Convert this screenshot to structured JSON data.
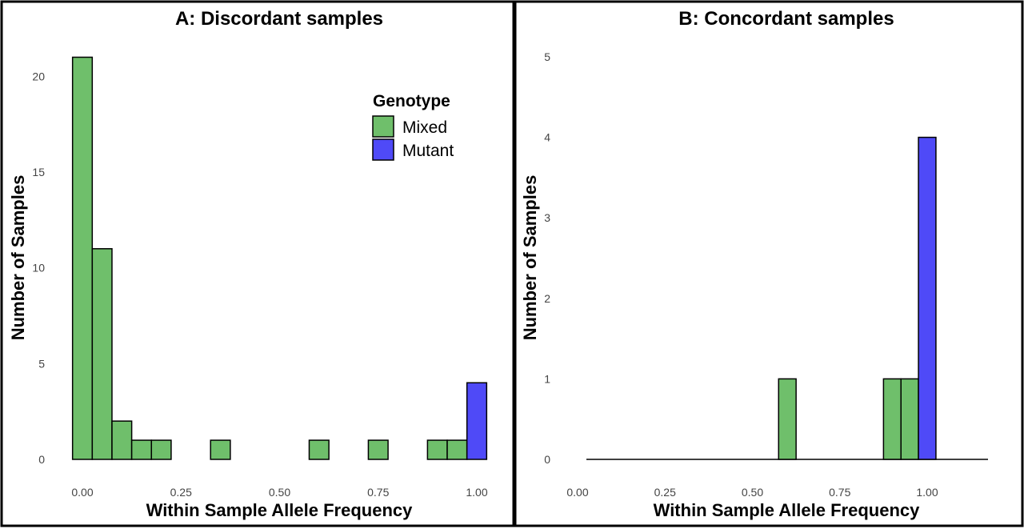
{
  "chart_data": [
    {
      "type": "bar",
      "title": "A: Discordant samples",
      "xlabel": "Within Sample Allele Frequency",
      "ylabel": "Number of Samples",
      "xlim": [
        0,
        1
      ],
      "ylim": [
        0,
        21
      ],
      "x_ticks": [
        "0.00",
        "0.25",
        "0.50",
        "0.75",
        "1.00"
      ],
      "y_ticks": [
        "0",
        "5",
        "10",
        "15",
        "20"
      ],
      "bin_width": 0.05,
      "legend": {
        "title": "Genotype",
        "placement": "top-right",
        "entries": [
          {
            "label": "Mixed",
            "color": "#6fbf6b"
          },
          {
            "label": "Mutant",
            "color": "#4f4af7"
          }
        ]
      },
      "series": [
        {
          "name": "Mixed",
          "color": "#6fbf6b",
          "x": [
            0.0,
            0.05,
            0.1,
            0.15,
            0.2,
            0.35,
            0.6,
            0.75,
            0.9,
            0.95
          ],
          "values": [
            21,
            11,
            2,
            1,
            1,
            1,
            1,
            1,
            1,
            1
          ]
        },
        {
          "name": "Mutant",
          "color": "#4f4af7",
          "x": [
            1.0
          ],
          "values": [
            4
          ]
        }
      ]
    },
    {
      "type": "bar",
      "title": "B: Concordant samples",
      "xlabel": "Within Sample Allele Frequency",
      "ylabel": "Number of Samples",
      "xlim": [
        0,
        1.15
      ],
      "ylim": [
        0,
        5
      ],
      "x_ticks": [
        "0.00",
        "0.25",
        "0.50",
        "0.75",
        "1.00"
      ],
      "y_ticks": [
        "0",
        "1",
        "2",
        "3",
        "4",
        "5"
      ],
      "bin_width": 0.05,
      "series": [
        {
          "name": "Mixed",
          "color": "#6fbf6b",
          "x": [
            0.6,
            0.9,
            0.95
          ],
          "values": [
            1,
            1,
            1
          ]
        },
        {
          "name": "Mutant",
          "color": "#4f4af7",
          "x": [
            1.0
          ],
          "values": [
            4
          ]
        }
      ]
    }
  ]
}
